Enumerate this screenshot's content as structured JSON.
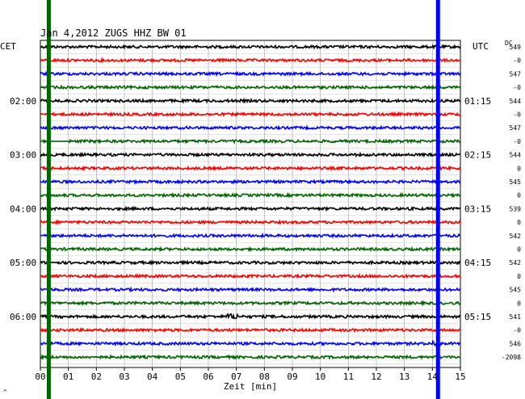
{
  "chart_data": {
    "type": "line",
    "title": "Jan 4,2012   ZUGS HHZ BW 01",
    "left_axis_label": "CET",
    "right_axis_label": "UTC",
    "dc_header": "DC",
    "xlabel": "Zeit [min]",
    "xlim": [
      0,
      15
    ],
    "x_ticks": [
      "00",
      "01",
      "02",
      "03",
      "04",
      "05",
      "06",
      "07",
      "08",
      "09",
      "10",
      "11",
      "12",
      "13",
      "14",
      "15"
    ],
    "left_time_labels": [
      {
        "trace": 4,
        "label": "02:00"
      },
      {
        "trace": 8,
        "label": "03:00"
      },
      {
        "trace": 12,
        "label": "04:00"
      },
      {
        "trace": 16,
        "label": "05:00"
      },
      {
        "trace": 20,
        "label": "06:00"
      }
    ],
    "right_time_labels": [
      {
        "trace": 4,
        "label": "01:15"
      },
      {
        "trace": 8,
        "label": "02:15"
      },
      {
        "trace": 12,
        "label": "03:15"
      },
      {
        "trace": 16,
        "label": "04:15"
      },
      {
        "trace": 20,
        "label": "05:15"
      }
    ],
    "trace_colors": [
      "#000000",
      "#ff0000",
      "#0000ff",
      "#006400"
    ],
    "dc_offsets": [
      "549",
      "-0",
      "547",
      "-0",
      "544",
      "-0",
      "547",
      "-0",
      "544",
      "0",
      "545",
      "0",
      "539",
      "0",
      "542",
      "0",
      "542",
      "0",
      "545",
      "0",
      "541",
      "-0",
      "546",
      "-2098"
    ],
    "marker_lines": [
      {
        "minute": 0.3,
        "color": "#006400"
      },
      {
        "minute": 14.2,
        "color": "#0000ff"
      }
    ],
    "grid": true,
    "corner_mark": "^"
  }
}
